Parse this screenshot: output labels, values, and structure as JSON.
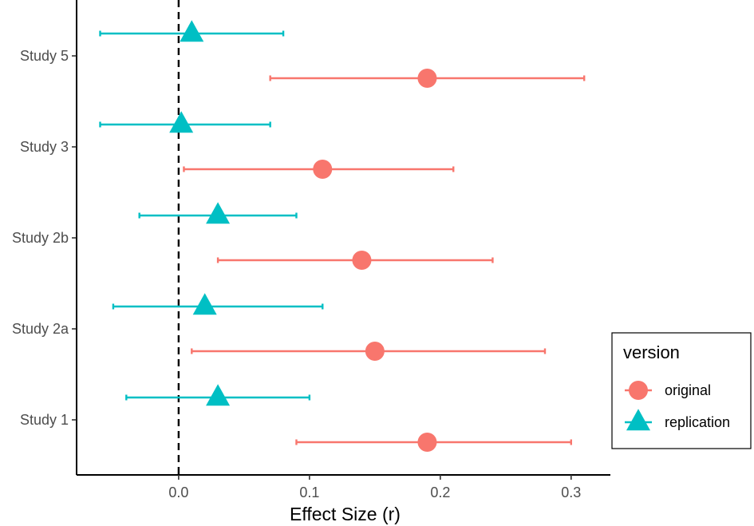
{
  "chart_data": {
    "type": "forest",
    "xlabel": "Effect Size (r)",
    "ylabel": "",
    "xlim": [
      -0.078,
      0.33
    ],
    "x_ticks": [
      {
        "value": 0.0,
        "label": "0.0"
      },
      {
        "value": 0.1,
        "label": "0.1"
      },
      {
        "value": 0.2,
        "label": "0.2"
      },
      {
        "value": 0.3,
        "label": "0.3"
      }
    ],
    "reference_line": {
      "x": 0,
      "style": "dashed"
    },
    "grid": false,
    "categories": [
      "Study 1",
      "Study 2a",
      "Study 2b",
      "Study 3",
      "Study 5"
    ],
    "series": [
      {
        "name": "original",
        "color": "#F8766D",
        "marker": "circle",
        "points": [
          {
            "study": "Study 1",
            "estimate": 0.19,
            "lower": 0.09,
            "upper": 0.3
          },
          {
            "study": "Study 2a",
            "estimate": 0.15,
            "lower": 0.01,
            "upper": 0.28
          },
          {
            "study": "Study 2b",
            "estimate": 0.14,
            "lower": 0.03,
            "upper": 0.24
          },
          {
            "study": "Study 3",
            "estimate": 0.11,
            "lower": 0.004,
            "upper": 0.21
          },
          {
            "study": "Study 5",
            "estimate": 0.19,
            "lower": 0.07,
            "upper": 0.31
          }
        ]
      },
      {
        "name": "replication",
        "color": "#00BFC4",
        "marker": "triangle",
        "points": [
          {
            "study": "Study 1",
            "estimate": 0.03,
            "lower": -0.04,
            "upper": 0.1
          },
          {
            "study": "Study 2a",
            "estimate": 0.02,
            "lower": -0.05,
            "upper": 0.11
          },
          {
            "study": "Study 2b",
            "estimate": 0.03,
            "lower": -0.03,
            "upper": 0.09
          },
          {
            "study": "Study 3",
            "estimate": 0.002,
            "lower": -0.06,
            "upper": 0.07
          },
          {
            "study": "Study 5",
            "estimate": 0.01,
            "lower": -0.06,
            "upper": 0.08
          }
        ]
      }
    ],
    "legend": {
      "title": "version",
      "position": "right",
      "entries": [
        {
          "label": "original",
          "marker": "circle",
          "color": "#F8766D"
        },
        {
          "label": "replication",
          "marker": "triangle",
          "color": "#00BFC4"
        }
      ]
    }
  }
}
